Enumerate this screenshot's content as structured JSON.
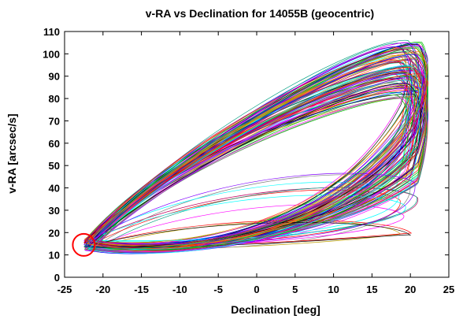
{
  "chart_data": {
    "type": "line",
    "title": "v-RA vs Declination for 14055B (geocentric)",
    "xlabel": "Declination [deg]",
    "ylabel": "v-RA [arcsec/s]",
    "xlim": [
      -25,
      25
    ],
    "ylim": [
      0,
      110
    ],
    "xticks": [
      "-25",
      "-20",
      "-15",
      "-10",
      "-5",
      "0",
      "5",
      "10",
      "15",
      "20",
      "25"
    ],
    "yticks": [
      "0",
      "10",
      "20",
      "30",
      "40",
      "50",
      "60",
      "70",
      "80",
      "90",
      "100",
      "110"
    ],
    "grid": false,
    "legend": "none",
    "num_series_approx": 120,
    "series_description_values": {
      "dec_min": -22.5,
      "dec_max": 22,
      "vra_min": 9,
      "vra_max": 106
    },
    "marker_circle": {
      "x": -22.5,
      "y": 14.5,
      "color": "#ff0000"
    },
    "colors": [
      "#ff0000",
      "#00c000",
      "#0000ff",
      "#ff00ff",
      "#00ffff",
      "#c0a000",
      "#000000",
      "#ff8000",
      "#8000ff",
      "#808080",
      "#00a080",
      "#c00060"
    ]
  }
}
